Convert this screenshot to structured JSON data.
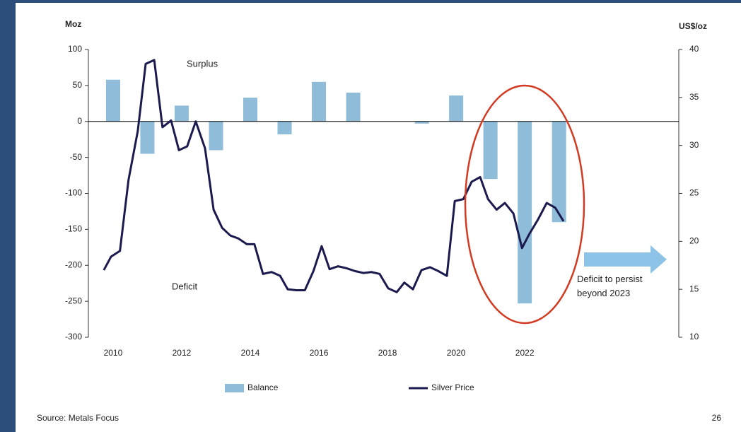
{
  "chart_data": {
    "type": "bar-line",
    "y_label": "Moz",
    "y2_label": "US$/oz",
    "annotations": [
      "Surplus",
      "Deficit",
      "Deficit to persist beyond 2023"
    ],
    "source": "Source: Metals Focus",
    "page_number": "26",
    "xlim": [
      2009.28,
      2026.49
    ],
    "xticks": [
      2010,
      2012,
      2014,
      2016,
      2018,
      2020,
      2022
    ],
    "ylim": [
      -300,
      100
    ],
    "yticks": [
      100,
      50,
      0,
      -50,
      -100,
      -150,
      -200,
      -250,
      -300
    ],
    "y2lim": [
      10,
      40
    ],
    "y2ticks": [
      40,
      35,
      30,
      25,
      20,
      15,
      10
    ],
    "series": [
      {
        "name": "Balance",
        "type": "bar",
        "color": "#8fbcd8",
        "x": [
          2010,
          2011,
          2012,
          2013,
          2014,
          2015,
          2016,
          2017,
          2018,
          2019,
          2020,
          2021,
          2022,
          2023
        ],
        "values": [
          58,
          -45,
          22,
          -40,
          33,
          -18,
          55,
          40,
          0,
          -3,
          36,
          -80,
          -253,
          -140
        ]
      },
      {
        "name": "Silver Price",
        "type": "line",
        "axis": "y2",
        "color": "#1b1a4f",
        "x": [
          2009.73,
          2009.94,
          2010.2,
          2010.45,
          2010.72,
          2010.95,
          2011.2,
          2011.44,
          2011.69,
          2011.92,
          2012.16,
          2012.41,
          2012.68,
          2012.93,
          2013.18,
          2013.42,
          2013.65,
          2013.9,
          2014.12,
          2014.37,
          2014.62,
          2014.87,
          2015.09,
          2015.34,
          2015.59,
          2015.84,
          2016.08,
          2016.31,
          2016.56,
          2016.8,
          2017.05,
          2017.3,
          2017.53,
          2017.77,
          2018.02,
          2018.27,
          2018.49,
          2018.74,
          2018.99,
          2019.24,
          2019.48,
          2019.73,
          2019.96,
          2020.21,
          2020.45,
          2020.7,
          2020.93,
          2021.18,
          2021.42,
          2021.67,
          2021.92,
          2022.14,
          2022.39,
          2022.64,
          2022.89,
          2023.13
        ],
        "values": [
          17.0,
          18.4,
          19.0,
          26.4,
          31.5,
          38.5,
          38.9,
          31.9,
          32.6,
          29.5,
          29.9,
          32.5,
          29.7,
          23.3,
          21.4,
          20.6,
          20.3,
          19.7,
          19.7,
          16.6,
          16.8,
          16.4,
          15.0,
          14.9,
          14.9,
          16.9,
          19.5,
          17.1,
          17.4,
          17.2,
          16.9,
          16.7,
          16.8,
          16.6,
          15.1,
          14.7,
          15.7,
          15.0,
          17.0,
          17.3,
          16.9,
          16.4,
          24.2,
          24.4,
          26.2,
          26.7,
          24.4,
          23.3,
          24.0,
          22.9,
          19.3,
          20.8,
          22.3,
          24.0,
          23.5,
          22.1
        ]
      }
    ]
  }
}
